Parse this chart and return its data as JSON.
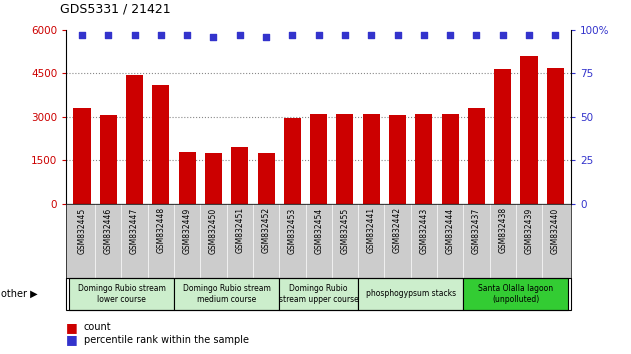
{
  "title": "GDS5331 / 21421",
  "samples": [
    "GSM832445",
    "GSM832446",
    "GSM832447",
    "GSM832448",
    "GSM832449",
    "GSM832450",
    "GSM832451",
    "GSM832452",
    "GSM832453",
    "GSM832454",
    "GSM832455",
    "GSM832441",
    "GSM832442",
    "GSM832443",
    "GSM832444",
    "GSM832437",
    "GSM832438",
    "GSM832439",
    "GSM832440"
  ],
  "counts": [
    3300,
    3050,
    4450,
    4100,
    1800,
    1750,
    1950,
    1750,
    2950,
    3100,
    3100,
    3100,
    3050,
    3100,
    3100,
    3300,
    4650,
    5100,
    4700
  ],
  "percentile": [
    97,
    97,
    97,
    97,
    97,
    96,
    97,
    96,
    97,
    97,
    97,
    97,
    97,
    97,
    97,
    97,
    97,
    97,
    97
  ],
  "bar_color": "#cc0000",
  "dot_color": "#3333cc",
  "ylim_left": [
    0,
    6000
  ],
  "ylim_right": [
    0,
    100
  ],
  "yticks_left": [
    0,
    1500,
    3000,
    4500,
    6000
  ],
  "yticks_right": [
    0,
    25,
    50,
    75,
    100
  ],
  "groups": [
    {
      "label": "Domingo Rubio stream\nlower course",
      "start": 0,
      "end": 3,
      "color": "#cceecc"
    },
    {
      "label": "Domingo Rubio stream\nmedium course",
      "start": 4,
      "end": 7,
      "color": "#cceecc"
    },
    {
      "label": "Domingo Rubio\nstream upper course",
      "start": 8,
      "end": 10,
      "color": "#cceecc"
    },
    {
      "label": "phosphogypsum stacks",
      "start": 11,
      "end": 14,
      "color": "#cceecc"
    },
    {
      "label": "Santa Olalla lagoon\n(unpolluted)",
      "start": 15,
      "end": 18,
      "color": "#33cc33"
    }
  ],
  "other_label": "other",
  "legend_count_label": "count",
  "legend_pct_label": "percentile rank within the sample",
  "background_color": "#ffffff",
  "tick_bg_color": "#cccccc",
  "group_border_color": "#000000",
  "dotted_line_color": "#888888"
}
